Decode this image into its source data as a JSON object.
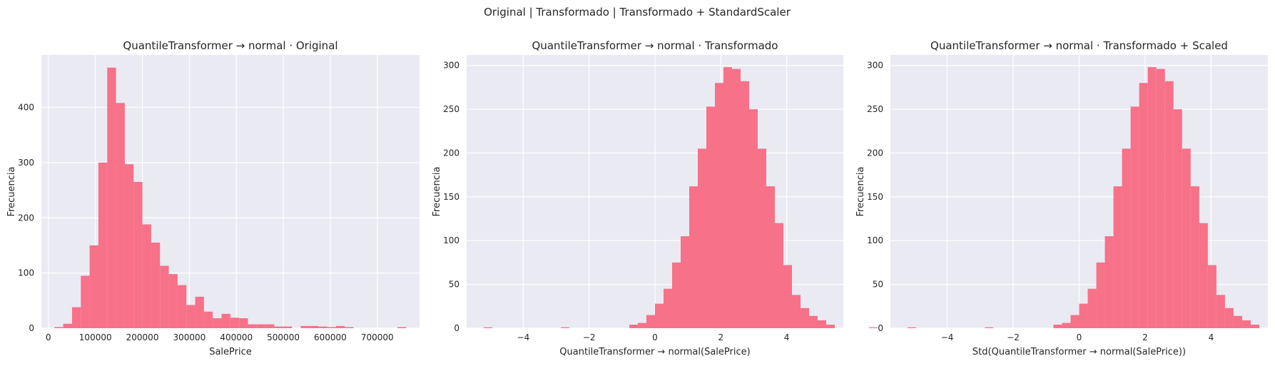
{
  "suptitle": "Original | Transformado | Transformado + StandardScaler",
  "colors": {
    "bar": "#f77189",
    "panel_bg": "#eaeaf2",
    "grid": "#ffffff"
  },
  "chart_data": [
    {
      "type": "bar",
      "title": "QuantileTransformer → normal · Original",
      "xlabel": "SalePrice",
      "ylabel": "Frecuencia",
      "xlim": [
        -15000,
        790000
      ],
      "ylim": [
        0,
        495
      ],
      "xticks": [
        0,
        100000,
        200000,
        300000,
        400000,
        500000,
        600000,
        700000
      ],
      "xtick_labels": [
        "0",
        "100000",
        "200000",
        "300000",
        "400000",
        "500000",
        "600000",
        "700000"
      ],
      "yticks": [
        0,
        100,
        200,
        300,
        400
      ],
      "grid": true,
      "bin_start": 12789,
      "bin_width": 18727,
      "values": [
        2,
        8,
        38,
        95,
        150,
        300,
        472,
        408,
        297,
        265,
        188,
        155,
        113,
        98,
        78,
        42,
        57,
        30,
        18,
        26,
        19,
        18,
        7,
        7,
        7,
        3,
        3,
        0,
        4,
        4,
        3,
        2,
        4,
        2,
        0,
        0,
        0,
        0,
        0,
        2
      ]
    },
    {
      "type": "bar",
      "title": "QuantileTransformer → normal · Transformado",
      "xlabel": "QuantileTransformer → normal(SalePrice)",
      "ylabel": "Frecuencia",
      "xlim": [
        -5.72,
        5.72
      ],
      "ylim": [
        0,
        312
      ],
      "xticks": [
        -4,
        -2,
        0,
        2,
        4
      ],
      "xtick_labels": [
        "−4",
        "−2",
        "0",
        "2",
        "4"
      ],
      "yticks": [
        0,
        50,
        100,
        150,
        200,
        250,
        300
      ],
      "grid": true,
      "bin_start": -5.2,
      "bin_width": 0.26,
      "values": [
        1,
        0,
        0,
        0,
        0,
        0,
        0,
        0,
        0,
        1,
        0,
        0,
        0,
        0,
        0,
        0,
        0,
        4,
        6,
        15,
        28,
        45,
        75,
        105,
        162,
        205,
        253,
        280,
        298,
        296,
        282,
        250,
        205,
        162,
        120,
        72,
        38,
        23,
        14,
        9,
        4,
        0,
        0,
        0,
        0,
        1,
        0,
        0,
        0,
        0,
        0,
        0,
        0,
        0,
        0,
        1
      ]
    },
    {
      "type": "bar",
      "title": "QuantileTransformer → normal · Transformado + Scaled",
      "xlabel": "Std(QuantileTransformer → normal(SalePrice))",
      "ylabel": "Frecuencia",
      "xlim": [
        -5.72,
        5.72
      ],
      "ylim": [
        0,
        312
      ],
      "xticks": [
        -4,
        -2,
        0,
        2,
        4
      ],
      "xtick_labels": [
        "−4",
        "−2",
        "0",
        "2",
        "4"
      ],
      "yticks": [
        0,
        50,
        100,
        150,
        200,
        250,
        300
      ],
      "grid": true,
      "bin_start": -5.2,
      "bin_width": 0.26,
      "values": [
        1,
        0,
        0,
        0,
        0,
        0,
        0,
        0,
        0,
        1,
        0,
        0,
        0,
        0,
        0,
        0,
        0,
        4,
        6,
        15,
        28,
        45,
        75,
        105,
        162,
        205,
        253,
        280,
        298,
        296,
        282,
        250,
        205,
        162,
        120,
        72,
        38,
        23,
        14,
        9,
        4,
        0,
        0,
        0,
        0,
        1,
        0,
        0,
        0,
        0,
        0,
        0,
        0,
        0,
        0,
        1
      ]
    }
  ]
}
